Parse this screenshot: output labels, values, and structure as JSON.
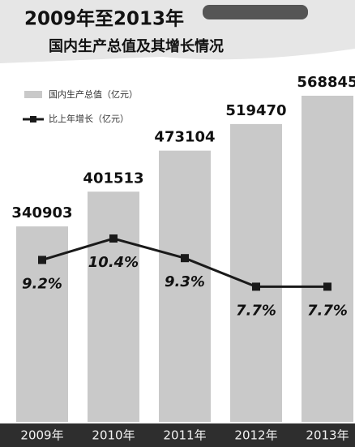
{
  "chart_data": {
    "type": "bar-line",
    "title": "2009年至2013年",
    "subtitle": "国内生产总值及其增长情况",
    "categories": [
      "2009年",
      "2010年",
      "2011年",
      "2012年",
      "2013年"
    ],
    "series": [
      {
        "name": "国内生产总值（亿元）",
        "type": "bar",
        "color": "#c9c9c9",
        "values": [
          340903,
          401513,
          473104,
          519470,
          568845
        ]
      },
      {
        "name": "比上年增长（亿元）",
        "type": "line",
        "color": "#1a1a1a",
        "values": [
          9.2,
          10.4,
          9.3,
          7.7,
          7.7
        ],
        "value_labels": [
          "9.2%",
          "10.4%",
          "9.3%",
          "7.7%",
          "7.7%"
        ]
      }
    ]
  }
}
